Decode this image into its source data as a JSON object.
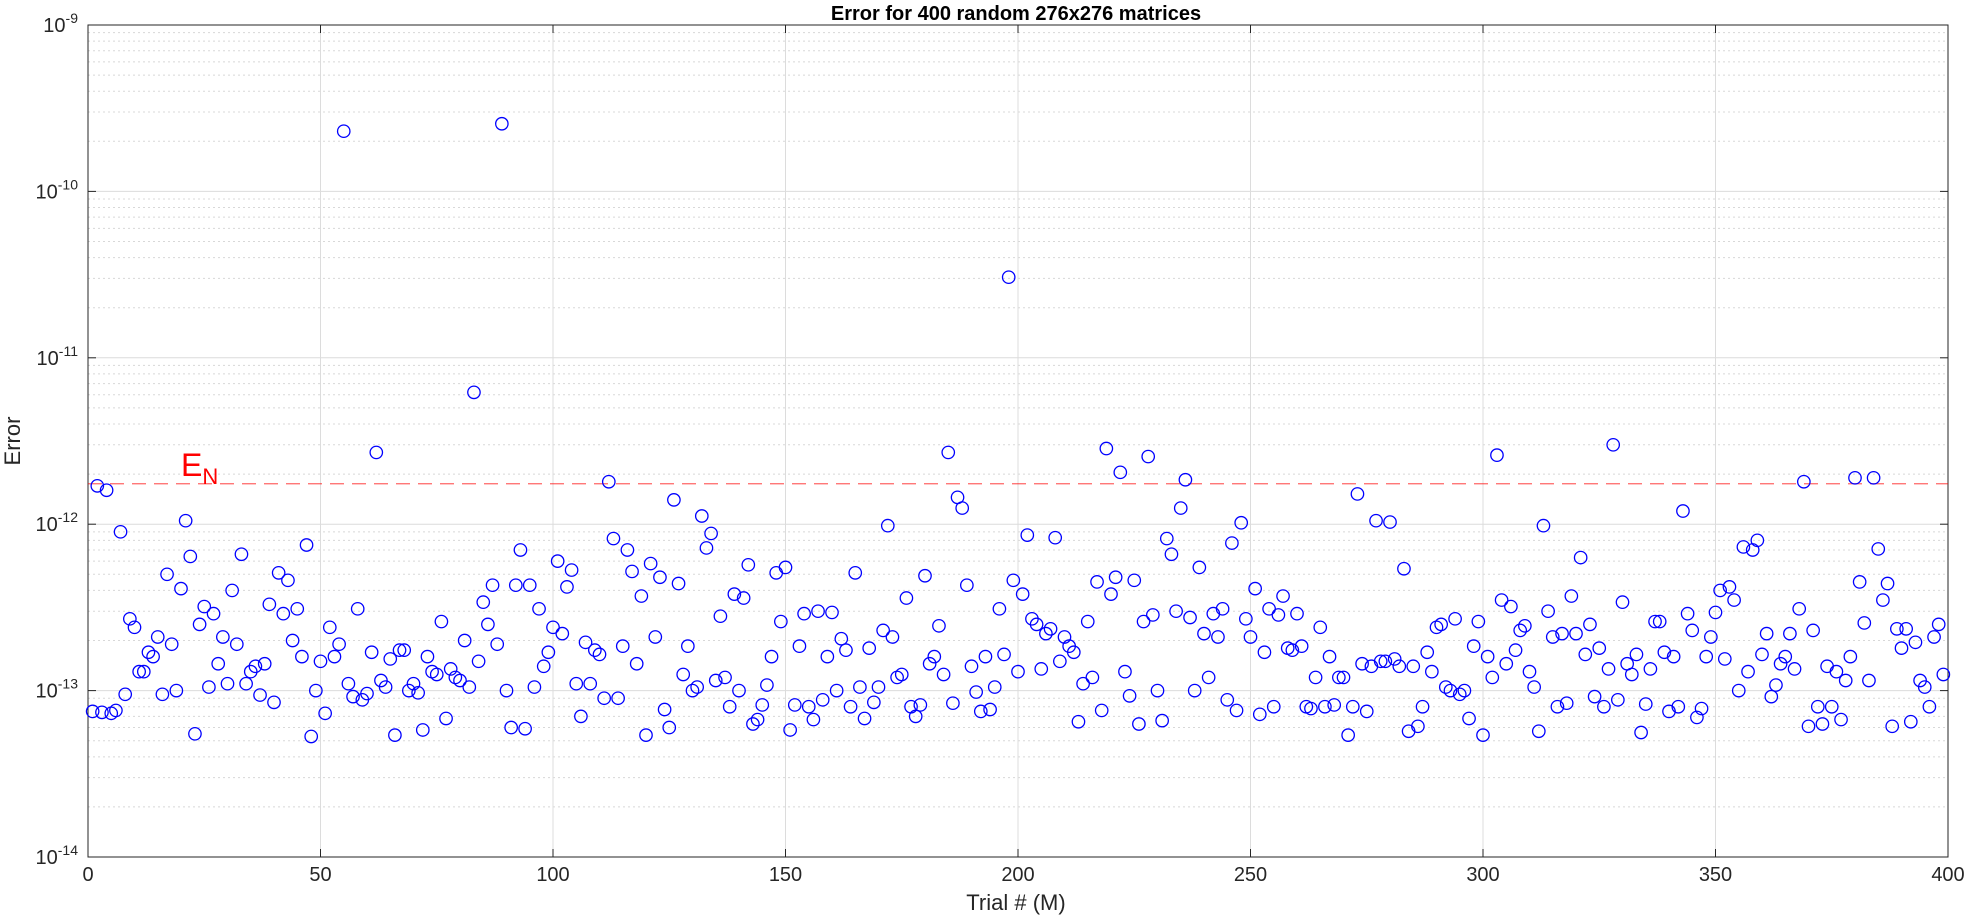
{
  "chart_data": {
    "type": "scatter",
    "title": "Error for 400 random 276x276 matrices",
    "xlabel": "Trial # (M)",
    "ylabel": "Error",
    "xlim": [
      0,
      400
    ],
    "ylim": [
      1e-14,
      1e-09
    ],
    "yscale": "log",
    "grid": true,
    "minor_grid": true,
    "x_ticks": [
      0,
      50,
      100,
      150,
      200,
      250,
      300,
      350,
      400
    ],
    "x_tick_labels": [
      "0",
      "50",
      "100",
      "150",
      "200",
      "250",
      "300",
      "350",
      "400"
    ],
    "y_ticks": [
      1e-14,
      1e-13,
      1e-12,
      1e-11,
      1e-10,
      1e-09
    ],
    "y_tick_labels": [
      {
        "base": "10",
        "exp": "-14"
      },
      {
        "base": "10",
        "exp": "-13"
      },
      {
        "base": "10",
        "exp": "-12"
      },
      {
        "base": "10",
        "exp": "-11"
      },
      {
        "base": "10",
        "exp": "-10"
      },
      {
        "base": "10",
        "exp": "-9"
      }
    ],
    "marker": "circle",
    "marker_color": "#0000ff",
    "reference_line": {
      "y": 1.75e-12,
      "label_base": "E",
      "label_sub": "N",
      "label_x": 20,
      "color": "#ff0000",
      "style": "dashed"
    },
    "series": [
      {
        "values": [
          7.5e-14,
          1.7e-12,
          7.4e-14,
          1.6e-12,
          7.3e-14,
          7.6e-14,
          9e-13,
          9.5e-14,
          2.7e-13,
          2.4e-13,
          1.3e-13,
          1.3e-13,
          1.7e-13,
          1.6e-13,
          2.1e-13,
          9.5e-14,
          5e-13,
          1.9e-13,
          1e-13,
          4.1e-13,
          1.05e-12,
          6.4e-13,
          5.5e-14,
          2.5e-13,
          3.2e-13,
          1.05e-13,
          2.9e-13,
          1.45e-13,
          2.1e-13,
          1.1e-13,
          4e-13,
          1.9e-13,
          6.6e-13,
          1.1e-13,
          1.3e-13,
          1.4e-13,
          9.4e-14,
          1.45e-13,
          3.3e-13,
          8.5e-14,
          5.1e-13,
          2.9e-13,
          4.6e-13,
          2e-13,
          3.1e-13,
          1.6e-13,
          7.5e-13,
          5.3e-14,
          1e-13,
          1.5e-13,
          7.3e-14,
          2.4e-13,
          1.6e-13,
          1.9e-13,
          2.3e-10,
          1.1e-13,
          9.2e-14,
          3.1e-13,
          8.8e-14,
          9.6e-14,
          1.7e-13,
          2.7e-12,
          1.15e-13,
          1.05e-13,
          1.55e-13,
          5.4e-14,
          1.75e-13,
          1.75e-13,
          1e-13,
          1.1e-13,
          9.7e-14,
          5.8e-14,
          1.6e-13,
          1.3e-13,
          1.25e-13,
          2.6e-13,
          6.8e-14,
          1.35e-13,
          1.2e-13,
          1.15e-13,
          2e-13,
          1.05e-13,
          6.2e-12,
          1.5e-13,
          3.4e-13,
          2.5e-13,
          4.3e-13,
          1.9e-13,
          2.55e-10,
          1e-13,
          6e-14,
          4.3e-13,
          7e-13,
          5.9e-14,
          4.3e-13,
          1.05e-13,
          3.1e-13,
          1.4e-13,
          1.7e-13,
          2.4e-13,
          6e-13,
          2.2e-13,
          4.2e-13,
          5.3e-13,
          1.1e-13,
          7e-14,
          1.95e-13,
          1.1e-13,
          1.75e-13,
          1.65e-13,
          9e-14,
          1.8e-12,
          8.2e-13,
          9e-14,
          1.85e-13,
          7e-13,
          5.2e-13,
          1.45e-13,
          3.7e-13,
          5.4e-14,
          5.8e-13,
          2.1e-13,
          4.8e-13,
          7.7e-14,
          6e-14,
          1.4e-12,
          4.4e-13,
          1.25e-13,
          1.85e-13,
          1e-13,
          1.05e-13,
          1.12e-12,
          7.2e-13,
          8.8e-13,
          1.15e-13,
          2.8e-13,
          1.2e-13,
          8e-14,
          3.8e-13,
          1e-13,
          3.6e-13,
          5.7e-13,
          6.3e-14,
          6.7e-14,
          8.2e-14,
          1.08e-13,
          1.6e-13,
          5.1e-13,
          2.6e-13,
          5.5e-13,
          5.8e-14,
          8.2e-14,
          1.85e-13,
          2.9e-13,
          8e-14,
          6.7e-14,
          3e-13,
          8.8e-14,
          1.6e-13,
          2.95e-13,
          1e-13,
          2.05e-13,
          1.75e-13,
          8e-14,
          5.1e-13,
          1.05e-13,
          6.8e-14,
          1.8e-13,
          8.5e-14,
          1.05e-13,
          2.3e-13,
          9.8e-13,
          2.1e-13,
          1.2e-13,
          1.25e-13,
          3.6e-13,
          8e-14,
          7e-14,
          8.2e-14,
          4.9e-13,
          1.45e-13,
          1.6e-13,
          2.45e-13,
          1.25e-13,
          2.7e-12,
          8.4e-14,
          1.45e-12,
          1.25e-12,
          4.3e-13,
          1.4e-13,
          9.8e-14,
          7.5e-14,
          1.6e-13,
          7.7e-14,
          1.05e-13,
          3.1e-13,
          1.65e-13,
          3.05e-11,
          4.6e-13,
          1.3e-13,
          3.8e-13,
          8.6e-13,
          2.7e-13,
          2.5e-13,
          1.35e-13,
          2.2e-13,
          2.35e-13,
          8.3e-13,
          1.5e-13,
          2.1e-13,
          1.85e-13,
          1.7e-13,
          6.5e-14,
          1.1e-13,
          2.6e-13,
          1.2e-13,
          4.5e-13,
          7.6e-14,
          2.85e-12,
          3.8e-13,
          4.8e-13,
          2.05e-12,
          1.3e-13,
          9.3e-14,
          4.6e-13,
          6.3e-14,
          2.6e-13,
          2.55e-12,
          2.85e-13,
          1e-13,
          6.6e-14,
          8.2e-13,
          6.6e-13,
          3e-13,
          1.25e-12,
          1.85e-12,
          2.75e-13,
          1e-13,
          5.5e-13,
          2.2e-13,
          1.2e-13,
          2.9e-13,
          2.1e-13,
          3.1e-13,
          8.8e-14,
          7.7e-13,
          7.6e-14,
          1.02e-12,
          2.7e-13,
          2.1e-13,
          4.1e-13,
          7.2e-14,
          1.7e-13,
          3.1e-13,
          8e-14,
          2.85e-13,
          3.7e-13,
          1.8e-13,
          1.75e-13,
          2.9e-13,
          1.85e-13,
          8e-14,
          7.8e-14,
          1.2e-13,
          2.4e-13,
          8e-14,
          1.6e-13,
          8.2e-14,
          1.2e-13,
          1.2e-13,
          5.4e-14,
          8e-14,
          1.52e-12,
          1.45e-13,
          7.5e-14,
          1.4e-13,
          1.05e-12,
          1.5e-13,
          1.5e-13,
          1.03e-12,
          1.55e-13,
          1.4e-13,
          5.4e-13,
          5.7e-14,
          1.4e-13,
          6.1e-14,
          8e-14,
          1.7e-13,
          1.3e-13,
          2.4e-13,
          2.5e-13,
          1.05e-13,
          1e-13,
          2.7e-13,
          9.5e-14,
          1e-13,
          6.8e-14,
          1.85e-13,
          2.6e-13,
          5.4e-14,
          1.6e-13,
          1.2e-13,
          2.6e-12,
          3.5e-13,
          1.45e-13,
          3.2e-13,
          1.75e-13,
          2.3e-13,
          2.45e-13,
          1.3e-13,
          1.05e-13,
          5.7e-14,
          9.8e-13,
          3e-13,
          2.1e-13,
          8e-14,
          2.2e-13,
          8.4e-14,
          3.7e-13,
          2.2e-13,
          6.3e-13,
          1.65e-13,
          2.5e-13,
          9.2e-14,
          1.8e-13,
          8e-14,
          1.35e-13,
          3e-12,
          8.8e-14,
          3.4e-13,
          1.45e-13,
          1.25e-13,
          1.65e-13,
          5.6e-14,
          8.3e-14,
          1.35e-13,
          2.6e-13,
          2.6e-13,
          1.7e-13,
          7.5e-14,
          1.6e-13,
          8e-14,
          1.2e-12,
          2.9e-13,
          2.3e-13,
          6.9e-14,
          7.8e-14,
          1.6e-13,
          2.1e-13,
          2.95e-13,
          4e-13,
          1.55e-13,
          4.2e-13,
          3.5e-13,
          1e-13,
          7.3e-13,
          1.3e-13,
          7e-13,
          8e-13,
          1.65e-13,
          2.2e-13,
          9.2e-14,
          1.08e-13,
          1.45e-13,
          1.6e-13,
          2.2e-13,
          1.35e-13,
          3.1e-13,
          1.8e-12,
          6.1e-14,
          2.3e-13,
          8e-14,
          6.3e-14,
          1.4e-13,
          8e-14,
          1.3e-13,
          6.7e-14,
          1.15e-13,
          1.6e-13,
          1.9e-12,
          4.5e-13,
          2.55e-13,
          1.15e-13,
          1.9e-12,
          7.1e-13,
          3.5e-13,
          4.4e-13,
          6.1e-14,
          2.35e-13,
          1.8e-13,
          2.35e-13,
          6.5e-14,
          1.95e-13,
          1.15e-13,
          1.05e-13,
          8e-14,
          2.1e-13,
          2.5e-13,
          1.25e-13
        ]
      }
    ]
  }
}
